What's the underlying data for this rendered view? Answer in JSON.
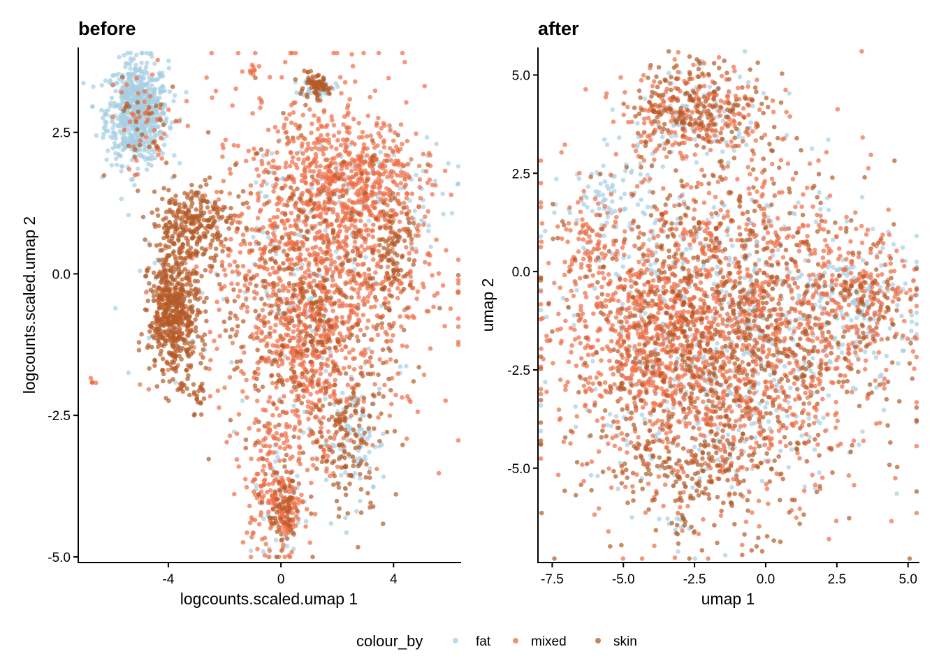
{
  "legend": {
    "title": "colour_by",
    "items": [
      {
        "label": "fat",
        "color": "#A6CEE3"
      },
      {
        "label": "mixed",
        "color": "#EE6C45"
      },
      {
        "label": "skin",
        "color": "#B35A26"
      }
    ]
  },
  "chart_data": [
    {
      "type": "scatter",
      "title": "before",
      "xlabel": "logcounts.scaled.umap 1",
      "ylabel": "logcounts.scaled.umap 2",
      "xlim": [
        -7.2,
        6.4
      ],
      "ylim": [
        -5.1,
        4.0
      ],
      "xticks": [
        -4,
        0,
        4
      ],
      "xtick_labels": [
        "-4",
        "0",
        "4"
      ],
      "yticks": [
        -5,
        -2.5,
        0,
        2.5
      ],
      "ytick_labels": [
        "-5.0",
        "-2.5",
        "0.0",
        "2.5"
      ],
      "series": [
        {
          "name": "fat",
          "clusters": [
            {
              "cx": -5.1,
              "cy": 2.85,
              "sx": 0.55,
              "sy": 0.45,
              "n": 700
            },
            {
              "cx": 1.3,
              "cy": 3.3,
              "sx": 0.3,
              "sy": 0.08,
              "n": 40
            },
            {
              "cx": 2.8,
              "cy": 1.4,
              "sx": 1.7,
              "sy": 0.5,
              "n": 110
            },
            {
              "cx": 0.8,
              "cy": -0.5,
              "sx": 1.6,
              "sy": 1.2,
              "n": 130
            },
            {
              "cx": 2.6,
              "cy": -3.0,
              "sx": 0.6,
              "sy": 0.5,
              "n": 80
            },
            {
              "cx": -4.0,
              "cy": -0.7,
              "sx": 0.5,
              "sy": 0.6,
              "n": 30
            },
            {
              "cx": 0.0,
              "cy": -4.2,
              "sx": 0.5,
              "sy": 0.4,
              "n": 40
            }
          ]
        },
        {
          "name": "mixed",
          "clusters": [
            {
              "cx": 1.3,
              "cy": 0.3,
              "sx": 1.9,
              "sy": 1.5,
              "n": 1300
            },
            {
              "cx": 2.8,
              "cy": 1.7,
              "sx": 1.0,
              "sy": 0.5,
              "n": 320
            },
            {
              "cx": 0.9,
              "cy": -1.8,
              "sx": 0.9,
              "sy": 0.9,
              "n": 260
            },
            {
              "cx": -0.4,
              "cy": -3.8,
              "sx": 0.45,
              "sy": 0.55,
              "n": 130
            },
            {
              "cx": 0.2,
              "cy": -4.2,
              "sx": 0.25,
              "sy": 0.35,
              "n": 100
            },
            {
              "cx": -5.0,
              "cy": 2.6,
              "sx": 0.6,
              "sy": 0.5,
              "n": 40
            },
            {
              "cx": -1.0,
              "cy": 3.6,
              "sx": 0.05,
              "sy": 0.05,
              "n": 8
            },
            {
              "cx": -6.7,
              "cy": -1.9,
              "sx": 0.03,
              "sy": 0.03,
              "n": 5
            },
            {
              "cx": -3.8,
              "cy": -0.7,
              "sx": 0.4,
              "sy": 0.5,
              "n": 40
            }
          ]
        },
        {
          "name": "skin",
          "clusters": [
            {
              "cx": -3.8,
              "cy": -0.7,
              "sx": 0.45,
              "sy": 0.55,
              "n": 500
            },
            {
              "cx": -3.2,
              "cy": 0.9,
              "sx": 0.7,
              "sy": 0.35,
              "n": 260
            },
            {
              "cx": 1.2,
              "cy": 3.3,
              "sx": 0.25,
              "sy": 0.1,
              "n": 70
            },
            {
              "cx": 4.0,
              "cy": 0.3,
              "sx": 0.35,
              "sy": 0.5,
              "n": 90
            },
            {
              "cx": 2.5,
              "cy": -3.0,
              "sx": 0.6,
              "sy": 0.7,
              "n": 110
            },
            {
              "cx": 1.0,
              "cy": -0.5,
              "sx": 1.7,
              "sy": 1.4,
              "n": 420
            },
            {
              "cx": 0.1,
              "cy": -4.2,
              "sx": 0.3,
              "sy": 0.4,
              "n": 60
            },
            {
              "cx": -2.9,
              "cy": -2.2,
              "sx": 0.15,
              "sy": 0.2,
              "n": 20
            },
            {
              "cx": -5.0,
              "cy": 2.6,
              "sx": 0.6,
              "sy": 0.5,
              "n": 30
            }
          ]
        }
      ]
    },
    {
      "type": "scatter",
      "title": "after",
      "xlabel": "umap 1",
      "ylabel": "umap 2",
      "xlim": [
        -8.0,
        5.4
      ],
      "ylim": [
        -7.4,
        5.7
      ],
      "xticks": [
        -7.5,
        -5,
        -2.5,
        0,
        2.5,
        5
      ],
      "xtick_labels": [
        "-7.5",
        "-5.0",
        "-2.5",
        "0.0",
        "2.5",
        "5.0"
      ],
      "yticks": [
        -5,
        -2.5,
        0,
        2.5,
        5
      ],
      "ytick_labels": [
        "-5.0",
        "-2.5",
        "0.0",
        "2.5",
        "5.0"
      ],
      "series": [
        {
          "name": "fat",
          "clusters": [
            {
              "cx": -1.6,
              "cy": -1.5,
              "sx": 2.6,
              "sy": 2.0,
              "n": 650
            },
            {
              "cx": 3.5,
              "cy": -0.8,
              "sx": 1.0,
              "sy": 0.8,
              "n": 140
            },
            {
              "cx": -5.5,
              "cy": 2.0,
              "sx": 0.8,
              "sy": 0.6,
              "n": 80
            },
            {
              "cx": -3.0,
              "cy": -6.4,
              "sx": 0.2,
              "sy": 0.3,
              "n": 12
            },
            {
              "cx": -2.5,
              "cy": 4.0,
              "sx": 1.2,
              "sy": 0.6,
              "n": 80
            }
          ]
        },
        {
          "name": "mixed",
          "clusters": [
            {
              "cx": -1.6,
              "cy": -1.6,
              "sx": 2.6,
              "sy": 2.1,
              "n": 1400
            },
            {
              "cx": -4.4,
              "cy": -1.6,
              "sx": 1.4,
              "sy": 1.3,
              "n": 380
            },
            {
              "cx": -2.5,
              "cy": 4.1,
              "sx": 1.3,
              "sy": 0.6,
              "n": 230
            },
            {
              "cx": -6.3,
              "cy": 0.8,
              "sx": 0.4,
              "sy": 0.6,
              "n": 50
            },
            {
              "cx": 3.5,
              "cy": -0.6,
              "sx": 1.0,
              "sy": 0.8,
              "n": 160
            }
          ]
        },
        {
          "name": "skin",
          "clusters": [
            {
              "cx": -1.6,
              "cy": -1.8,
              "sx": 2.6,
              "sy": 2.2,
              "n": 900
            },
            {
              "cx": -2.4,
              "cy": 4.2,
              "sx": 1.2,
              "sy": 0.6,
              "n": 180
            },
            {
              "cx": -3.0,
              "cy": -5.0,
              "sx": 1.5,
              "sy": 0.5,
              "n": 120
            },
            {
              "cx": -3.0,
              "cy": -6.5,
              "sx": 0.15,
              "sy": 0.2,
              "n": 10
            },
            {
              "cx": 3.3,
              "cy": -1.0,
              "sx": 0.9,
              "sy": 0.8,
              "n": 80
            }
          ]
        }
      ]
    }
  ]
}
